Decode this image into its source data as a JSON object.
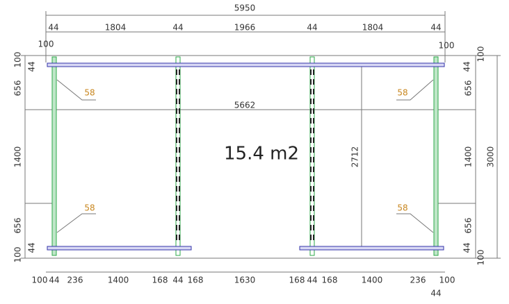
{
  "area": "15.4 m2",
  "top_dimensions": {
    "overall": "5950",
    "segments": [
      "44",
      "1804",
      "44",
      "1966",
      "44",
      "1804",
      "44"
    ]
  },
  "left_dimensions": {
    "top_offset": "100",
    "segments": [
      "100",
      "44",
      "656",
      "1400",
      "656",
      "44",
      "100"
    ]
  },
  "right_dimensions": {
    "top_offset": "100",
    "overall": "3000",
    "segments": [
      "100",
      "44",
      "656",
      "1400",
      "656",
      "44",
      "100"
    ]
  },
  "bottom_dimensions": {
    "segments": [
      "100",
      "44",
      "236",
      "1400",
      "168",
      "44",
      "168",
      "1630",
      "168",
      "44",
      "168",
      "1400",
      "236",
      "100"
    ],
    "extra": "44"
  },
  "interior": {
    "beam_length": "5662",
    "height": "2712",
    "brackets": [
      "58",
      "58",
      "58",
      "58"
    ]
  }
}
